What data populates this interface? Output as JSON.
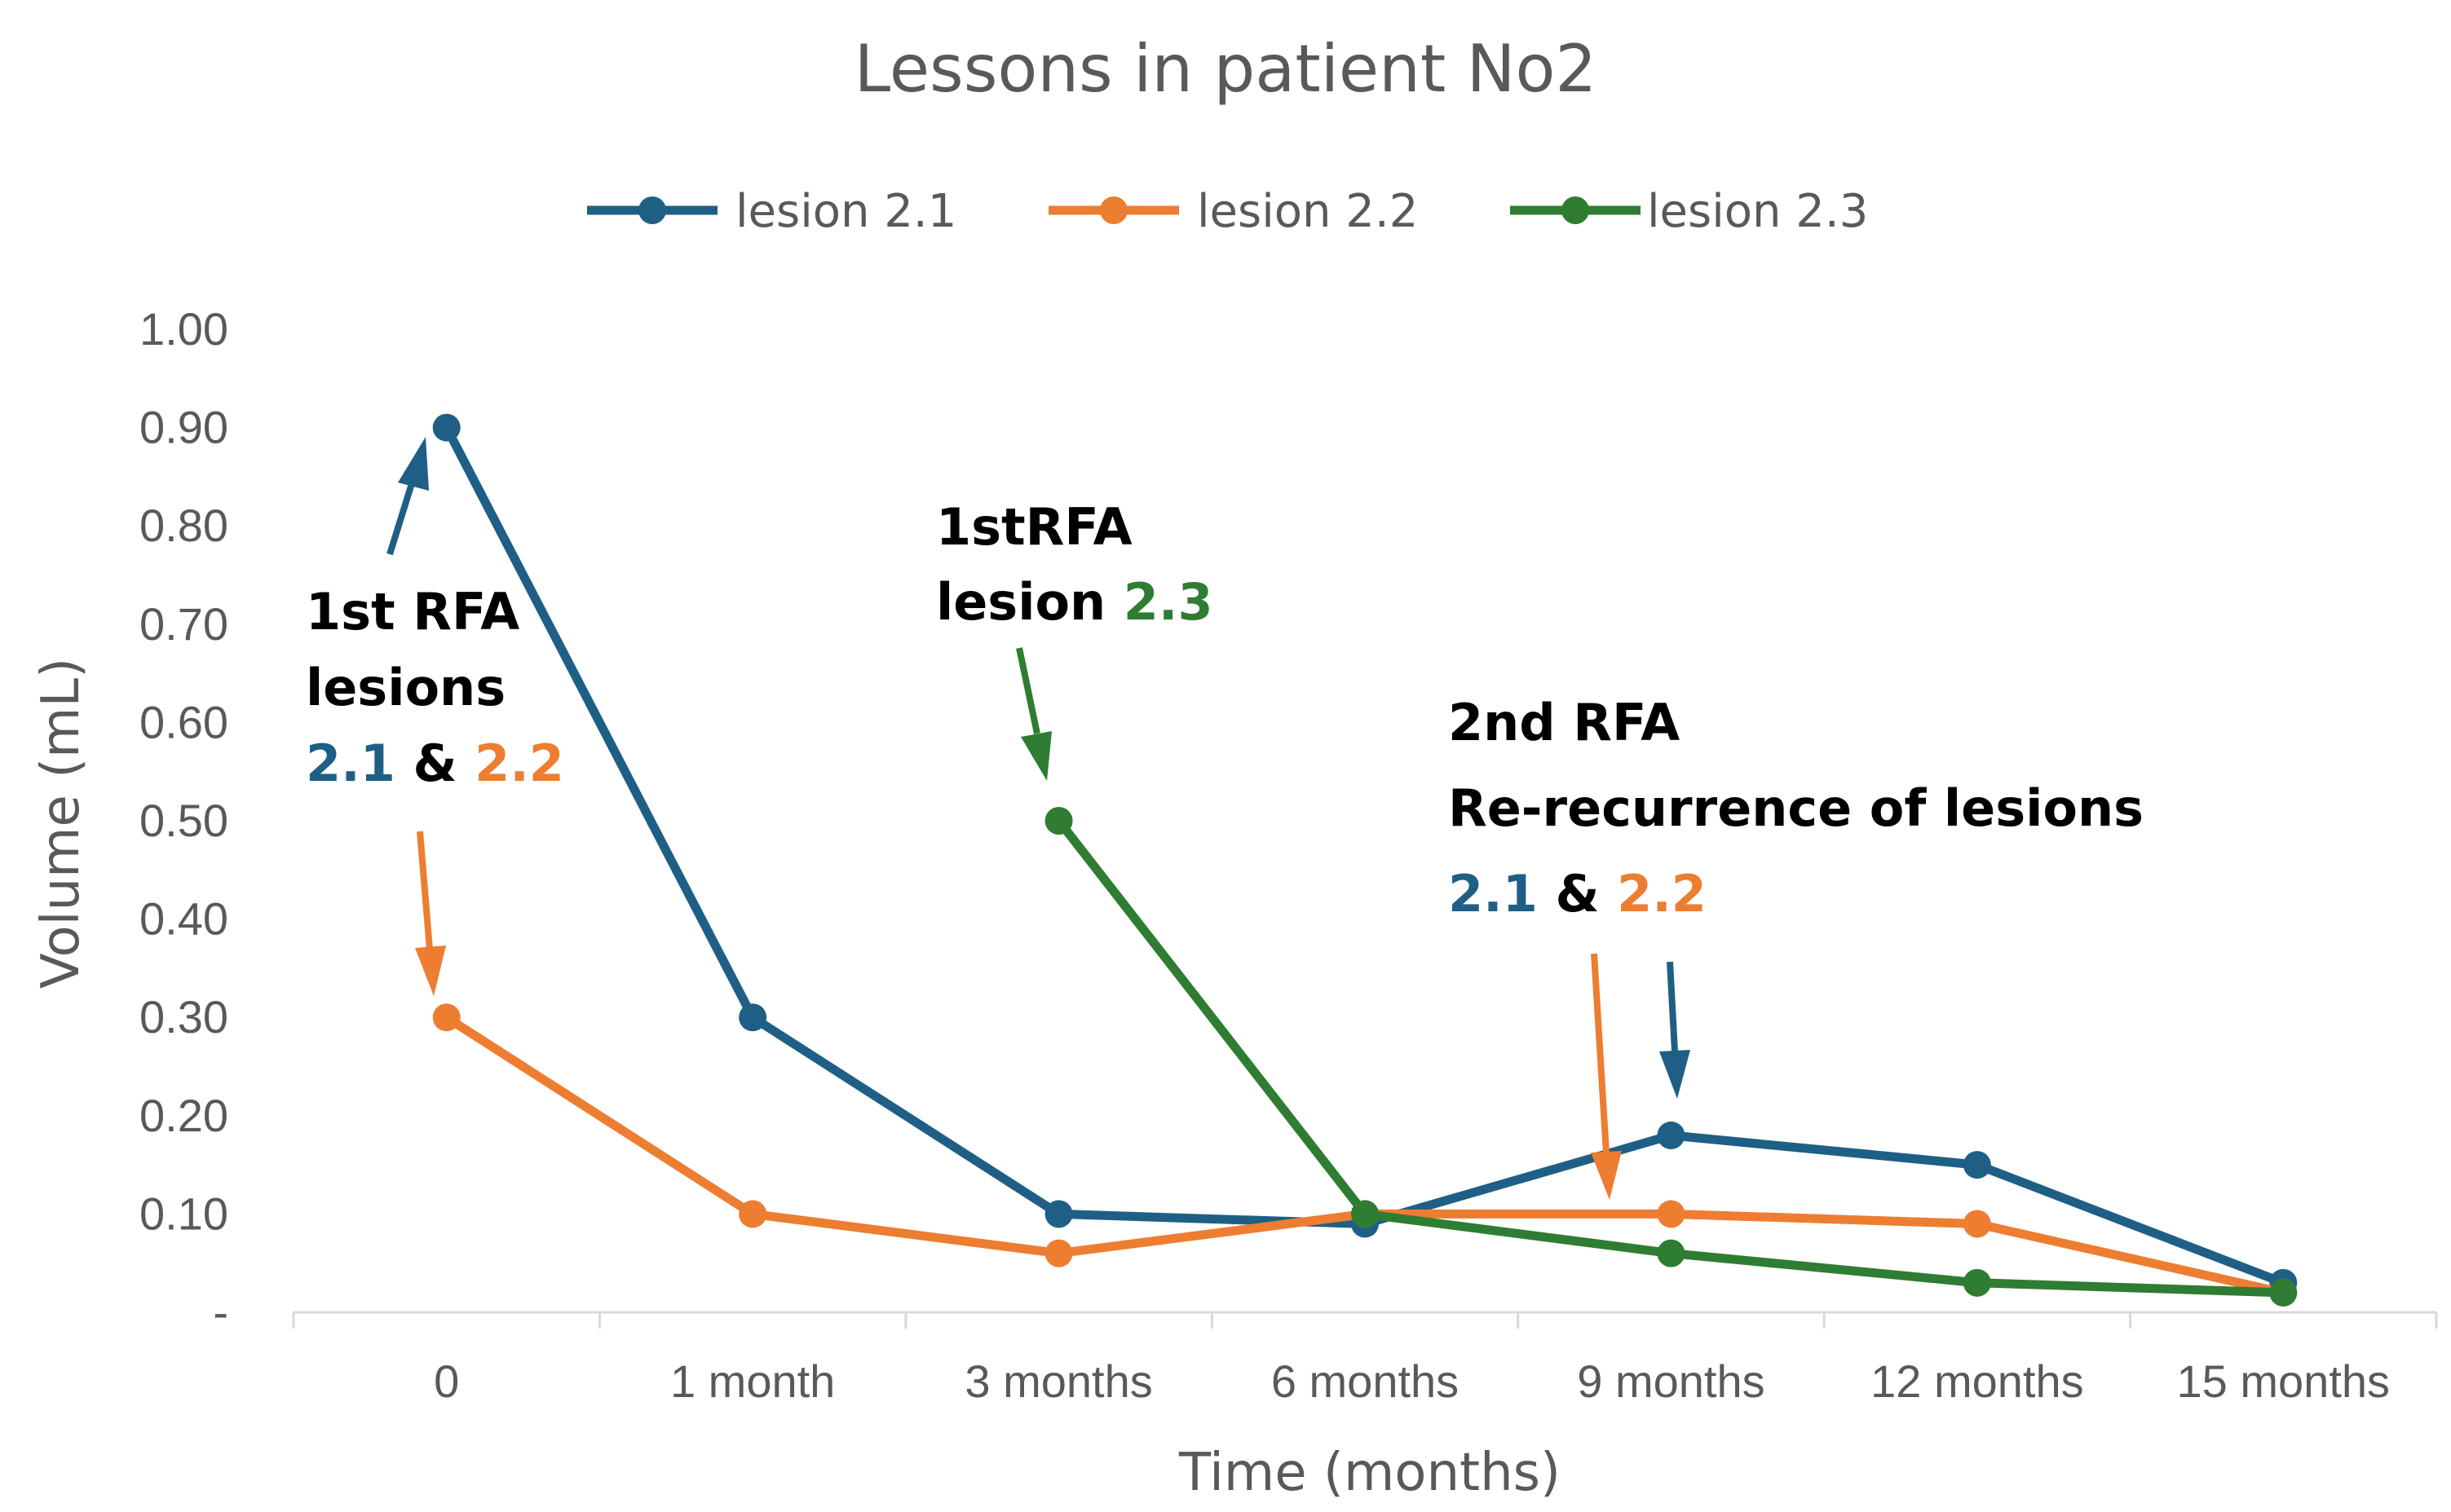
{
  "chart_data": {
    "type": "line",
    "title": "Lessons in patient No2",
    "xlabel": "Time (months)",
    "ylabel": "Volume (mL)",
    "categories": [
      "0",
      "1 month",
      "3 months",
      "6 months",
      "9 months",
      "12 months",
      "15 months"
    ],
    "ylim": [
      0,
      1.0
    ],
    "yticks": [
      "-",
      "0.10",
      "0.20",
      "0.30",
      "0.40",
      "0.50",
      "0.60",
      "0.70",
      "0.80",
      "0.90",
      "1.00"
    ],
    "grid": false,
    "legend_position": "top-center",
    "series": [
      {
        "name": "lesion 2.1",
        "color": "#1f5f86",
        "values": [
          0.9,
          0.3,
          0.1,
          0.09,
          0.18,
          0.15,
          0.03
        ]
      },
      {
        "name": "lesion 2.2",
        "color": "#ed7d31",
        "values": [
          0.3,
          0.1,
          0.06,
          0.1,
          0.1,
          0.09,
          0.02
        ]
      },
      {
        "name": "lesion 2.3",
        "color": "#2e7d32",
        "values": [
          null,
          null,
          0.5,
          0.1,
          0.06,
          0.03,
          0.02
        ]
      }
    ],
    "annotations": {
      "first_rfa": {
        "line1": "1st RFA",
        "line2": "lesions",
        "id_a": "2.1",
        "amp": "&",
        "id_b": "2.2"
      },
      "first_rfa_23": {
        "line1": "1stRFA",
        "prefix": "lesion",
        "id": "2.3"
      },
      "second_rfa": {
        "line1": "2nd RFA",
        "line2": "Re-recurrence of lesions",
        "id_a": "2.1",
        "amp": "&",
        "id_b": "2.2"
      }
    }
  }
}
